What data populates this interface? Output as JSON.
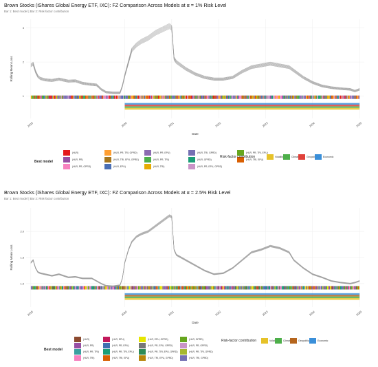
{
  "chart_data": [
    {
      "type": "line",
      "title": "Brown Stocks (iShares Global Energy ETF, IXC): FZ Comparison Across Models at α = 1% Risk Level",
      "subtitle": "Bar 1: Best model | Bar 2: Risk-factor contribution",
      "xlabel": "Date",
      "ylabel": "Rolling Mean Loss",
      "x_ticks": [
        "2018",
        "2020",
        "2021",
        "2022",
        "2023",
        "2024",
        "2025"
      ],
      "x_tick_positions": [
        2018.0,
        2020.0,
        2021.0,
        2022.0,
        2023.0,
        2024.0,
        2025.0
      ],
      "xlim": [
        2017.9,
        2025.1
      ],
      "y_ticks": [
        "1",
        "2",
        "3"
      ],
      "y_tick_values": [
        1,
        2,
        3
      ],
      "ylim": [
        0.35,
        3.25
      ],
      "grid": true,
      "bar1_y": 0.97,
      "bar2_y": 0.7,
      "series_band_count": 8,
      "series_band_spread": 0.05,
      "series": [
        {
          "x": [
            2018.0,
            2018.05,
            2018.1,
            2018.15,
            2018.2,
            2018.3,
            2018.45,
            2018.6,
            2018.8,
            2018.95,
            2019.1,
            2019.25,
            2019.4,
            2019.5,
            2019.6,
            2019.75,
            2019.9,
            2019.95,
            2020.0,
            2020.08,
            2020.15,
            2020.25,
            2020.35,
            2020.5,
            2020.65,
            2020.8,
            2020.95,
            2021.0,
            2021.05,
            2021.1,
            2021.3,
            2021.5,
            2021.7,
            2021.9,
            2022.1,
            2022.3,
            2022.5,
            2022.7,
            2022.9,
            2023.1,
            2023.3,
            2023.5,
            2023.6,
            2023.8,
            2024.0,
            2024.2,
            2024.4,
            2024.6,
            2024.8,
            2024.9,
            2025.0
          ],
          "y": [
            1.9,
            1.95,
            1.72,
            1.58,
            1.52,
            1.48,
            1.46,
            1.5,
            1.44,
            1.45,
            1.38,
            1.35,
            1.33,
            1.2,
            1.12,
            1.1,
            1.1,
            1.3,
            1.6,
            2.0,
            2.35,
            2.5,
            2.6,
            2.7,
            2.85,
            2.95,
            3.05,
            3.0,
            2.1,
            2.0,
            1.8,
            1.65,
            1.55,
            1.5,
            1.5,
            1.55,
            1.72,
            1.85,
            1.9,
            1.95,
            1.9,
            1.85,
            1.75,
            1.55,
            1.4,
            1.3,
            1.25,
            1.22,
            1.2,
            1.15,
            1.2
          ]
        }
      ],
      "best_model_legend": {
        "title": "Best model",
        "items": [
          {
            "label": "(HLR)",
            "color": "#e41a1c"
          },
          {
            "label": "(HLR, PR)",
            "color": "#984ea3"
          },
          {
            "label": "(HLR, PR, GPRD)",
            "color": "#f781bf"
          },
          {
            "label": "(HLR, PR, TRI, GPRD)",
            "color": "#ff9f33"
          },
          {
            "label": "(HLR, TRI, EPU, GPRD)",
            "color": "#a6761d"
          },
          {
            "label": "(HLR, EPU)",
            "color": "#4a6fb5"
          },
          {
            "label": "(HLR, PR, EPU)",
            "color": "#8c6bb1"
          },
          {
            "label": "(HLR, PR, TRI)",
            "color": "#4daf4a"
          },
          {
            "label": "(HLR, TRI)",
            "color": "#e6ab02"
          },
          {
            "label": "(HLR, TRI, GPRD)",
            "color": "#7570b3"
          },
          {
            "label": "(HLR, GPRD)",
            "color": "#1b9e77"
          },
          {
            "label": "(HLR, PR, EPU, GPRD)",
            "color": "#c994c7"
          },
          {
            "label": "(HLR, PR, TRI, EPU)",
            "color": "#66a61e"
          },
          {
            "label": "(HLR, TRI, EPU)",
            "color": "#d95f02"
          }
        ]
      },
      "risk_factor_legend": {
        "title": "Risk-factor contribution",
        "items": [
          {
            "label": "Volatility",
            "color": "#e6c229"
          },
          {
            "label": "Climate",
            "color": "#4daf4a"
          },
          {
            "label": "Geopolitical",
            "color": "#e0413a"
          },
          {
            "label": "Economic",
            "color": "#3a8fd9"
          }
        ]
      }
    },
    {
      "type": "line",
      "title": "Brown Stocks (iShares Global Energy ETF, IXC): FZ Comparison Across Models at α = 2.5% Risk Level",
      "subtitle": "Bar 1: Best model | Bar 2: Risk-factor contribution",
      "xlabel": "Date",
      "ylabel": "Rolling Mean Loss",
      "x_ticks": [
        "2018",
        "2020",
        "2021",
        "2022",
        "2023",
        "2024",
        "2025"
      ],
      "x_tick_positions": [
        2018.0,
        2020.0,
        2021.0,
        2022.0,
        2023.0,
        2024.0,
        2025.0
      ],
      "xlim": [
        2017.9,
        2025.1
      ],
      "y_ticks": [
        "1.0",
        "1.5",
        "2.0"
      ],
      "y_tick_values": [
        1.0,
        1.5,
        2.0
      ],
      "ylim": [
        0.55,
        2.45
      ],
      "grid": true,
      "bar1_y": 0.92,
      "bar2_y": 0.75,
      "series_band_count": 8,
      "series_band_spread": 0.02,
      "series": [
        {
          "x": [
            2018.0,
            2018.05,
            2018.1,
            2018.15,
            2018.2,
            2018.3,
            2018.45,
            2018.6,
            2018.8,
            2018.95,
            2019.1,
            2019.3,
            2019.5,
            2019.6,
            2019.75,
            2019.9,
            2019.95,
            2020.0,
            2020.08,
            2020.15,
            2020.25,
            2020.35,
            2020.5,
            2020.65,
            2020.8,
            2020.95,
            2021.0,
            2021.05,
            2021.1,
            2021.3,
            2021.5,
            2021.7,
            2021.9,
            2022.1,
            2022.3,
            2022.5,
            2022.7,
            2022.9,
            2023.1,
            2023.3,
            2023.5,
            2023.6,
            2023.8,
            2024.0,
            2024.2,
            2024.4,
            2024.6,
            2024.8,
            2024.9,
            2025.0
          ],
          "y": [
            1.4,
            1.45,
            1.3,
            1.22,
            1.2,
            1.18,
            1.15,
            1.18,
            1.12,
            1.13,
            1.1,
            1.1,
            1.0,
            0.96,
            0.95,
            0.97,
            1.1,
            1.4,
            1.65,
            1.8,
            1.9,
            1.95,
            2.0,
            2.1,
            2.2,
            2.3,
            2.28,
            1.65,
            1.55,
            1.45,
            1.35,
            1.25,
            1.18,
            1.2,
            1.3,
            1.45,
            1.6,
            1.65,
            1.72,
            1.68,
            1.6,
            1.45,
            1.3,
            1.18,
            1.12,
            1.05,
            1.02,
            1.0,
            1.02,
            1.05
          ]
        }
      ],
      "best_model_legend": {
        "title": "Best model",
        "items": [
          {
            "label": "(HLR)",
            "color": "#8c4a2f"
          },
          {
            "label": "(HLR, PR)",
            "color": "#984ea3"
          },
          {
            "label": "(HLR, PR, TRI)",
            "color": "#3aa0a0"
          },
          {
            "label": "(HLR, TRI)",
            "color": "#f781bf"
          },
          {
            "label": "(HLR, EPU)",
            "color": "#c2185b"
          },
          {
            "label": "(HLR, PR, EPU)",
            "color": "#3f6fb0"
          },
          {
            "label": "(HLR, PR, TRI, EPU)",
            "color": "#1b9e77"
          },
          {
            "label": "(HLR, TRI, EPU)",
            "color": "#d95f02"
          },
          {
            "label": "(HLR, EPU, GPRD)",
            "color": "#e6e600"
          },
          {
            "label": "(HLR, PR, EPU, GPRD)",
            "color": "#777777"
          },
          {
            "label": "(HLR, PR, TRI, EPU, GPRD)",
            "color": "#2e8b57"
          },
          {
            "label": "(HLR, TRI, EPU, GPRD)",
            "color": "#b8860b"
          },
          {
            "label": "(HLR, GPRD)",
            "color": "#66a61e"
          },
          {
            "label": "(HLR, PR, GPRD)",
            "color": "#c994c7"
          },
          {
            "label": "(HLR, PR, TRI, GPRD)",
            "color": "#a6b82f"
          },
          {
            "label": "(HLR, TRI, GPRD)",
            "color": "#7570b3"
          }
        ]
      },
      "risk_factor_legend": {
        "title": "Risk-factor contribution",
        "items": [
          {
            "label": "Volatility",
            "color": "#e6c229"
          },
          {
            "label": "Climate",
            "color": "#4daf4a"
          },
          {
            "label": "Geopolitical",
            "color": "#b5651d"
          },
          {
            "label": "Economic",
            "color": "#3a8fd9"
          }
        ]
      }
    }
  ]
}
